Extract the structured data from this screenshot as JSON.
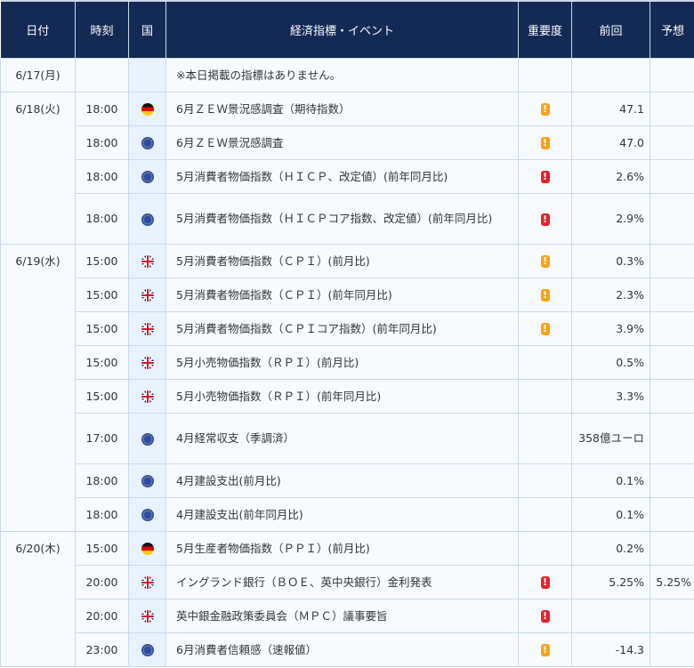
{
  "header": {
    "date": "日付",
    "time": "時刻",
    "country": "国",
    "event": "経済指標・イベント",
    "importance": "重要度",
    "previous": "前回",
    "forecast": "予想"
  },
  "colors": {
    "header_bg": "#132a54",
    "importance_medium": "#f7a21b",
    "importance_high": "#e0242c"
  },
  "days": [
    {
      "date": "6/17(月)",
      "rows": [
        {
          "time": "",
          "country": "",
          "event": "※本日掲載の指標はありません。",
          "importance": "",
          "previous": "",
          "forecast": ""
        }
      ]
    },
    {
      "date": "6/18(火)",
      "rows": [
        {
          "time": "18:00",
          "country": "germany-flag",
          "event": "6月ＺＥＷ景況感調査（期待指数）",
          "importance": "medium",
          "previous": "47.1",
          "forecast": ""
        },
        {
          "time": "18:00",
          "country": "eu-flag",
          "event": "6月ＺＥＷ景況感調査",
          "importance": "medium",
          "previous": "47.0",
          "forecast": ""
        },
        {
          "time": "18:00",
          "country": "eu-flag",
          "event": "5月消費者物価指数（ＨＩＣＰ、改定値）(前年同月比)",
          "importance": "high",
          "previous": "2.6%",
          "forecast": ""
        },
        {
          "time": "18:00",
          "country": "eu-flag",
          "event": "5月消費者物価指数（ＨＩＣＰコア指数、改定値）(前年同月比)",
          "importance": "high",
          "previous": "2.9%",
          "forecast": "",
          "tall": true
        }
      ]
    },
    {
      "date": "6/19(水)",
      "rows": [
        {
          "time": "15:00",
          "country": "uk-flag",
          "event": "5月消費者物価指数（ＣＰＩ）(前月比)",
          "importance": "medium",
          "previous": "0.3%",
          "forecast": ""
        },
        {
          "time": "15:00",
          "country": "uk-flag",
          "event": "5月消費者物価指数（ＣＰＩ）(前年同月比)",
          "importance": "medium",
          "previous": "2.3%",
          "forecast": ""
        },
        {
          "time": "15:00",
          "country": "uk-flag",
          "event": "5月消費者物価指数（ＣＰＩコア指数）(前年同月比)",
          "importance": "medium",
          "previous": "3.9%",
          "forecast": ""
        },
        {
          "time": "15:00",
          "country": "uk-flag",
          "event": "5月小売物価指数（ＲＰＩ）(前月比)",
          "importance": "",
          "previous": "0.5%",
          "forecast": ""
        },
        {
          "time": "15:00",
          "country": "uk-flag",
          "event": "5月小売物価指数（ＲＰＩ）(前年同月比)",
          "importance": "",
          "previous": "3.3%",
          "forecast": ""
        },
        {
          "time": "17:00",
          "country": "eu-flag",
          "event": "4月経常収支（季調済）",
          "importance": "",
          "previous": "358億ユーロ",
          "forecast": "",
          "tall": true
        },
        {
          "time": "18:00",
          "country": "eu-flag",
          "event": "4月建設支出(前月比)",
          "importance": "",
          "previous": "0.1%",
          "forecast": ""
        },
        {
          "time": "18:00",
          "country": "eu-flag",
          "event": "4月建設支出(前年同月比)",
          "importance": "",
          "previous": "0.1%",
          "forecast": ""
        }
      ]
    },
    {
      "date": "6/20(木)",
      "rows": [
        {
          "time": "15:00",
          "country": "germany-flag",
          "event": "5月生産者物価指数（ＰＰＩ）(前月比)",
          "importance": "",
          "previous": "0.2%",
          "forecast": ""
        },
        {
          "time": "20:00",
          "country": "uk-flag",
          "event": "イングランド銀行（ＢＯＥ、英中央銀行）金利発表",
          "importance": "high",
          "previous": "5.25%",
          "forecast": "5.25%"
        },
        {
          "time": "20:00",
          "country": "uk-flag",
          "event": "英中銀金融政策委員会（ＭＰＣ）議事要旨",
          "importance": "high",
          "previous": "",
          "forecast": ""
        },
        {
          "time": "23:00",
          "country": "eu-flag",
          "event": "6月消費者信頼感（速報値）",
          "importance": "medium",
          "previous": "-14.3",
          "forecast": ""
        }
      ]
    }
  ]
}
